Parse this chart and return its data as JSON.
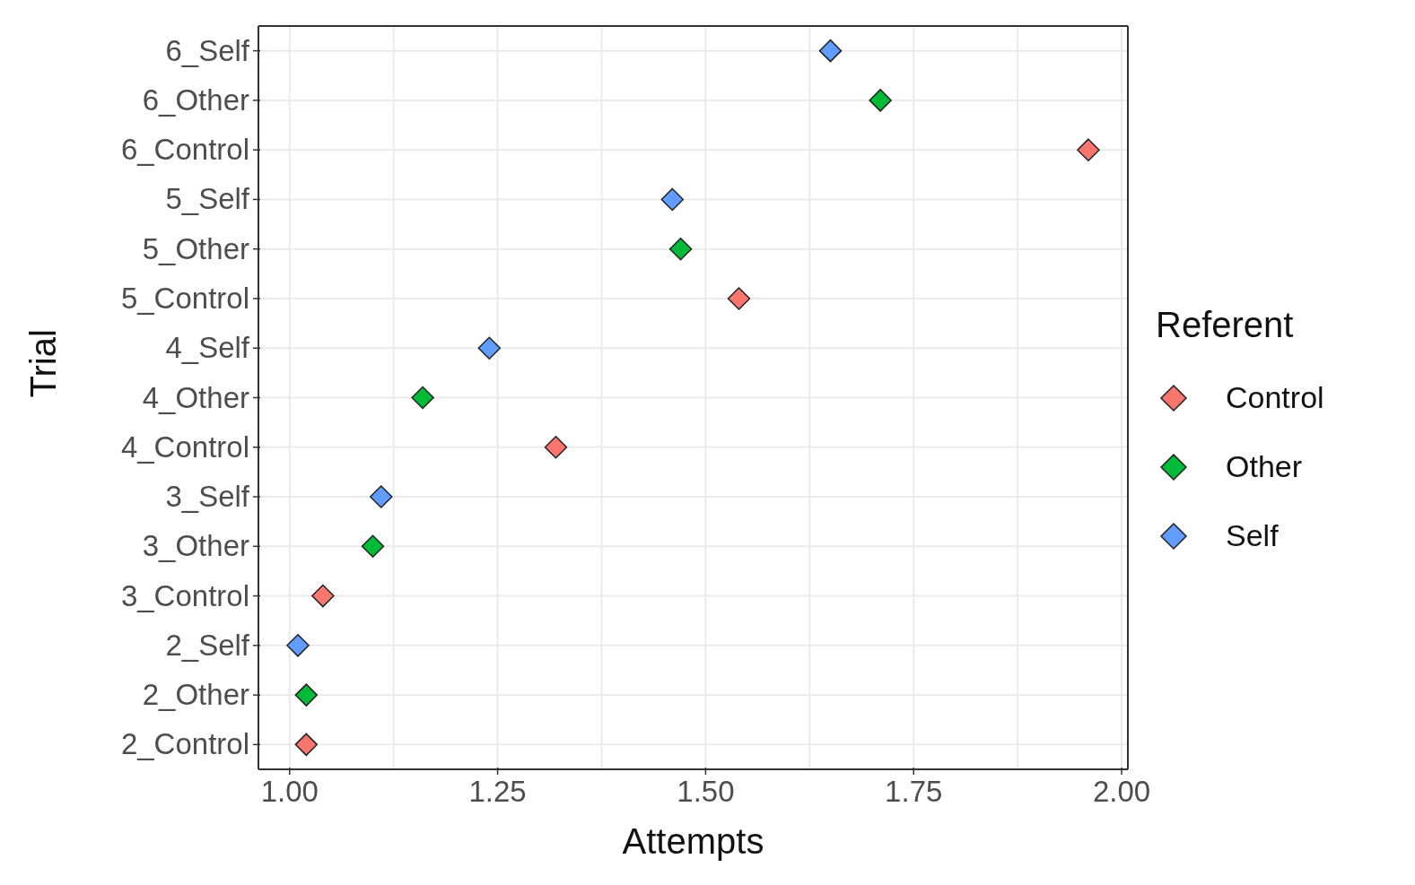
{
  "chart_data": {
    "type": "scatter",
    "orientation": "horizontal",
    "xlabel": "Attempts",
    "ylabel": "Trial",
    "legend_title": "Referent",
    "legend": "right",
    "grid": true,
    "marker": "diamond",
    "categories": [
      "6_Self",
      "6_Other",
      "6_Control",
      "5_Self",
      "5_Other",
      "5_Control",
      "4_Self",
      "4_Other",
      "4_Control",
      "3_Self",
      "3_Other",
      "3_Control",
      "2_Self",
      "2_Other",
      "2_Control"
    ],
    "xlim": [
      0.9625,
      2.0075
    ],
    "xticks": [
      {
        "value": 1,
        "label": "1.00"
      },
      {
        "value": 1.125,
        "label": null
      },
      {
        "value": 1.25,
        "label": "1.25"
      },
      {
        "value": 1.375,
        "label": null
      },
      {
        "value": 1.5,
        "label": "1.50"
      },
      {
        "value": 1.625,
        "label": null
      },
      {
        "value": 1.75,
        "label": "1.75"
      },
      {
        "value": 1.875,
        "label": null
      },
      {
        "value": 2,
        "label": "2.00"
      }
    ],
    "series": [
      {
        "name": "Control",
        "color": "#f8766d",
        "values": [
          null,
          null,
          1.96,
          null,
          null,
          1.54,
          null,
          null,
          1.32,
          null,
          null,
          1.04,
          null,
          null,
          1.02
        ]
      },
      {
        "name": "Other",
        "color": "#00ba38",
        "values": [
          null,
          1.71,
          null,
          null,
          1.47,
          null,
          null,
          1.16,
          null,
          null,
          1.1,
          null,
          null,
          1.02,
          null
        ]
      },
      {
        "name": "Self",
        "color": "#619cff",
        "values": [
          1.65,
          null,
          null,
          1.46,
          null,
          null,
          1.24,
          null,
          null,
          1.11,
          null,
          null,
          1.01,
          null,
          null
        ]
      }
    ]
  }
}
